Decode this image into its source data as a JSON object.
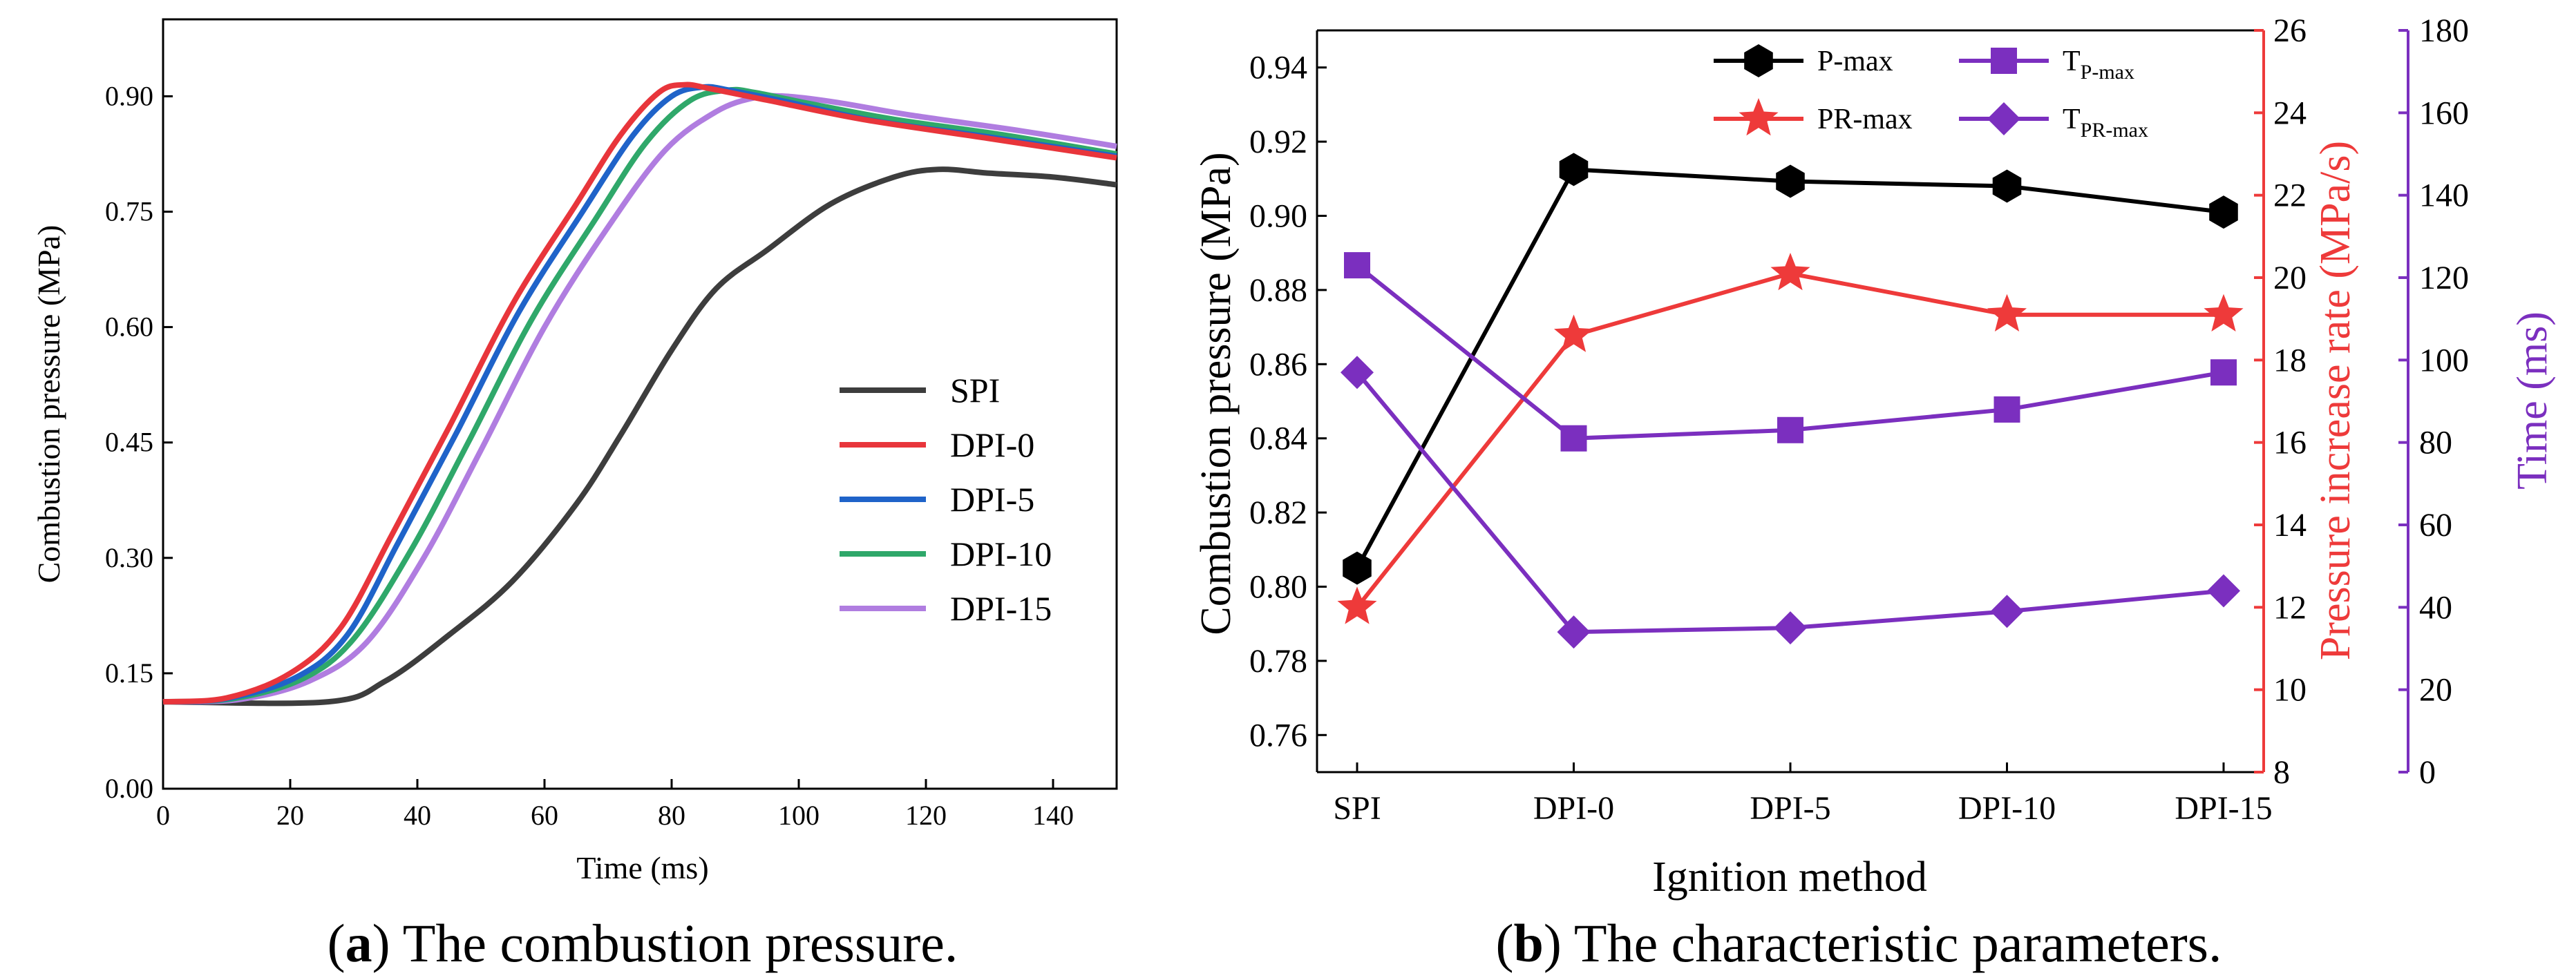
{
  "captions": {
    "a_label": "a",
    "a_text": " The combustion pressure.",
    "b_label": "b",
    "b_text": " The characteristic parameters."
  },
  "chart_data": [
    {
      "id": "a",
      "type": "line",
      "xlabel": "Time (ms)",
      "ylabel": "Combustion pressure (MPa)",
      "xlim": [
        0,
        150
      ],
      "ylim": [
        0,
        1.0
      ],
      "xticks": [
        "0",
        "20",
        "40",
        "60",
        "80",
        "100",
        "120",
        "140"
      ],
      "xtick_values": [
        0,
        20,
        40,
        60,
        80,
        100,
        120,
        140
      ],
      "yticks": [
        "0.00",
        "0.15",
        "0.30",
        "0.45",
        "0.60",
        "0.75",
        "0.90"
      ],
      "ytick_values": [
        0,
        0.15,
        0.3,
        0.45,
        0.6,
        0.75,
        0.9
      ],
      "legend_position": "right-middle",
      "series": [
        {
          "name": "SPI",
          "color": "#3d3d3d",
          "points": [
            [
              0,
              0.113
            ],
            [
              26,
              0.113
            ],
            [
              35,
              0.14
            ],
            [
              45,
              0.2
            ],
            [
              55,
              0.27
            ],
            [
              65,
              0.37
            ],
            [
              72,
              0.46
            ],
            [
              80,
              0.57
            ],
            [
              87,
              0.65
            ],
            [
              95,
              0.7
            ],
            [
              105,
              0.76
            ],
            [
              115,
              0.795
            ],
            [
              122,
              0.805
            ],
            [
              130,
              0.8
            ],
            [
              140,
              0.795
            ],
            [
              150,
              0.785
            ]
          ]
        },
        {
          "name": "DPI-0",
          "color": "#e8353b",
          "points": [
            [
              0,
              0.113
            ],
            [
              10,
              0.118
            ],
            [
              20,
              0.15
            ],
            [
              28,
              0.21
            ],
            [
              36,
              0.33
            ],
            [
              45,
              0.47
            ],
            [
              55,
              0.63
            ],
            [
              65,
              0.76
            ],
            [
              72,
              0.85
            ],
            [
              78,
              0.905
            ],
            [
              82,
              0.915
            ],
            [
              86,
              0.91
            ],
            [
              95,
              0.895
            ],
            [
              110,
              0.87
            ],
            [
              130,
              0.845
            ],
            [
              150,
              0.82
            ]
          ]
        },
        {
          "name": "DPI-5",
          "color": "#1f63c9",
          "points": [
            [
              0,
              0.113
            ],
            [
              10,
              0.117
            ],
            [
              21,
              0.145
            ],
            [
              29,
              0.2
            ],
            [
              37,
              0.32
            ],
            [
              46,
              0.46
            ],
            [
              56,
              0.62
            ],
            [
              66,
              0.75
            ],
            [
              74,
              0.85
            ],
            [
              80,
              0.9
            ],
            [
              85,
              0.912
            ],
            [
              89,
              0.908
            ],
            [
              98,
              0.893
            ],
            [
              112,
              0.868
            ],
            [
              130,
              0.847
            ],
            [
              150,
              0.822
            ]
          ]
        },
        {
          "name": "DPI-10",
          "color": "#2fa86a",
          "points": [
            [
              0,
              0.113
            ],
            [
              11,
              0.117
            ],
            [
              22,
              0.143
            ],
            [
              30,
              0.195
            ],
            [
              39,
              0.31
            ],
            [
              48,
              0.45
            ],
            [
              58,
              0.61
            ],
            [
              68,
              0.74
            ],
            [
              76,
              0.84
            ],
            [
              83,
              0.895
            ],
            [
              89,
              0.908
            ],
            [
              93,
              0.905
            ],
            [
              102,
              0.89
            ],
            [
              115,
              0.87
            ],
            [
              132,
              0.85
            ],
            [
              150,
              0.825
            ]
          ]
        },
        {
          "name": "DPI-15",
          "color": "#b07de0",
          "points": [
            [
              0,
              0.113
            ],
            [
              12,
              0.116
            ],
            [
              23,
              0.14
            ],
            [
              32,
              0.19
            ],
            [
              41,
              0.3
            ],
            [
              50,
              0.44
            ],
            [
              60,
              0.6
            ],
            [
              70,
              0.73
            ],
            [
              79,
              0.83
            ],
            [
              87,
              0.88
            ],
            [
              93,
              0.898
            ],
            [
              98,
              0.9
            ],
            [
              106,
              0.892
            ],
            [
              118,
              0.875
            ],
            [
              135,
              0.855
            ],
            [
              150,
              0.835
            ]
          ]
        }
      ]
    },
    {
      "id": "b",
      "type": "line",
      "xlabel": "Ignition method",
      "categories": [
        "SPI",
        "DPI-0",
        "DPI-5",
        "DPI-10",
        "DPI-15"
      ],
      "axes": {
        "left": {
          "label": "Combustion pressure (MPa)",
          "range": [
            0.75,
            0.95
          ],
          "ticks": [
            "0.76",
            "0.78",
            "0.80",
            "0.82",
            "0.84",
            "0.86",
            "0.88",
            "0.90",
            "0.92",
            "0.94"
          ],
          "color": "#000000"
        },
        "right1": {
          "label": "Pressure increase rate (MPa/s)",
          "range": [
            8,
            26
          ],
          "ticks": [
            "8",
            "10",
            "12",
            "14",
            "16",
            "18",
            "20",
            "22",
            "24",
            "26"
          ],
          "color": "#ee3a3a"
        },
        "right2": {
          "label": "Time (ms)",
          "range": [
            0,
            180
          ],
          "ticks": [
            "0",
            "20",
            "40",
            "60",
            "80",
            "100",
            "120",
            "140",
            "160",
            "180"
          ],
          "color": "#7b2fbf"
        }
      },
      "legend_position": "top",
      "series": [
        {
          "name": "P-max",
          "axis": "left",
          "marker": "hexagon",
          "color": "#000000",
          "values": [
            0.805,
            0.9125,
            0.9093,
            0.908,
            0.901
          ]
        },
        {
          "name": "PR-max",
          "axis": "right1",
          "marker": "star",
          "color": "#ee3a3a",
          "values": [
            12.0,
            18.6,
            20.1,
            19.1,
            19.1
          ]
        },
        {
          "name": "T",
          "name_sub": "P-max",
          "axis": "right2",
          "marker": "square",
          "color": "#7b2fbf",
          "values": [
            123,
            81,
            83,
            88,
            97
          ]
        },
        {
          "name": "T",
          "name_sub": "PR-max",
          "axis": "right2",
          "marker": "diamond",
          "color": "#7b2fbf",
          "values": [
            97,
            34,
            35,
            39,
            44
          ]
        }
      ]
    }
  ]
}
